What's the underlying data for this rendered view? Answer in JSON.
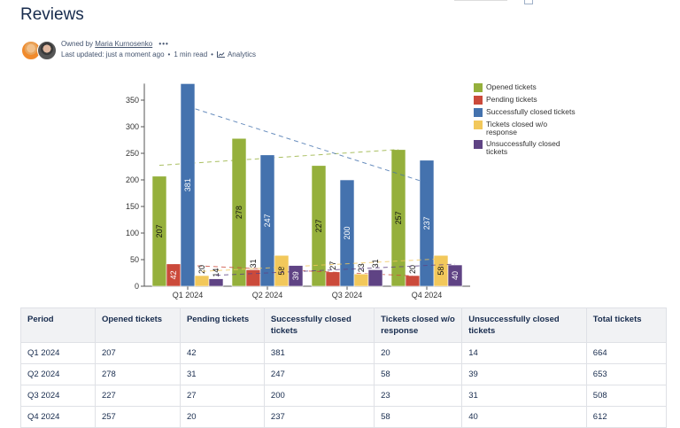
{
  "page": {
    "title": "Reviews",
    "owned_by_label": "Owned by",
    "owner": "Maria Kurnosenko",
    "more": "•••",
    "last_updated": "Last updated: just a moment ago",
    "read_time": "1 min read",
    "analytics": "Analytics",
    "separator": "•"
  },
  "chart_data": {
    "type": "bar",
    "categories": [
      "Q1 2024",
      "Q2 2024",
      "Q3 2024",
      "Q4 2024"
    ],
    "ylim": [
      0,
      381
    ],
    "yticks": [
      0,
      50,
      100,
      150,
      200,
      250,
      300,
      350
    ],
    "legend_position": "right",
    "trendlines": true,
    "series": [
      {
        "name": "Opened tickets",
        "color": "#95b03c",
        "values": [
          207,
          278,
          227,
          257
        ]
      },
      {
        "name": "Pending tickets",
        "color": "#cb4a3b",
        "values": [
          42,
          31,
          27,
          20
        ]
      },
      {
        "name": "Successfully closed tickets",
        "color": "#4472ae",
        "values": [
          381,
          247,
          200,
          237
        ]
      },
      {
        "name": "Tickets closed w/o response",
        "color": "#f2c85b",
        "values": [
          20,
          58,
          23,
          58
        ]
      },
      {
        "name": "Unsuccessfully closed tickets",
        "color": "#5f4384",
        "values": [
          14,
          39,
          31,
          40
        ]
      }
    ]
  },
  "table": {
    "headers": [
      "Period",
      "Opened tickets",
      "Pending tickets",
      "Successfully closed tickets",
      "Tickets closed w/o response",
      "Unsuccessfully closed tickets",
      "Total tickets"
    ],
    "rows": [
      [
        "Q1 2024",
        "207",
        "42",
        "381",
        "20",
        "14",
        "664"
      ],
      [
        "Q2 2024",
        "278",
        "31",
        "247",
        "58",
        "39",
        "653"
      ],
      [
        "Q3 2024",
        "227",
        "27",
        "200",
        "23",
        "31",
        "508"
      ],
      [
        "Q4 2024",
        "257",
        "20",
        "237",
        "58",
        "40",
        "612"
      ]
    ]
  }
}
